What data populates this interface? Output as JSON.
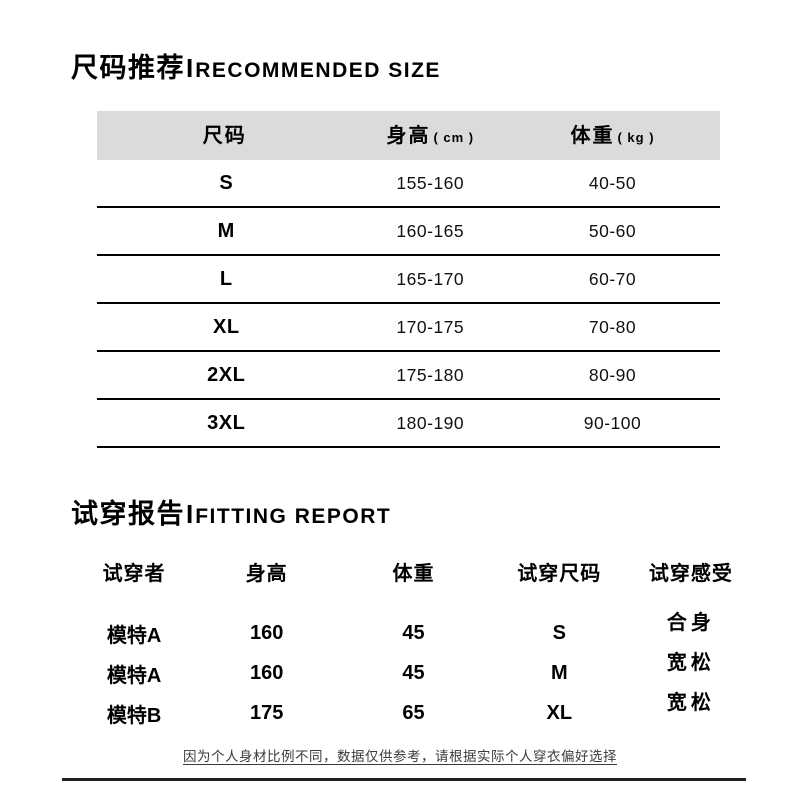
{
  "page": {
    "background": "#ffffff"
  },
  "section_size": {
    "title_zh": "尺码推荐",
    "title_sep": "I",
    "title_en": "RECOMMENDED SIZE",
    "table": {
      "header_bg": "#dbdbdb",
      "columns": [
        {
          "label": "尺码",
          "unit": ""
        },
        {
          "label": "身高",
          "unit": "( cm )"
        },
        {
          "label": "体重",
          "unit": "( kg )"
        }
      ],
      "rows": [
        {
          "size": "S",
          "height": "155-160",
          "weight": "40-50"
        },
        {
          "size": "M",
          "height": "160-165",
          "weight": "50-60"
        },
        {
          "size": "L",
          "height": "165-170",
          "weight": "60-70"
        },
        {
          "size": "XL",
          "height": "170-175",
          "weight": "70-80"
        },
        {
          "size": "2XL",
          "height": "175-180",
          "weight": "80-90"
        },
        {
          "size": "3XL",
          "height": "180-190",
          "weight": "90-100"
        }
      ]
    }
  },
  "section_fitting": {
    "title_zh": "试穿报告",
    "title_sep": "I",
    "title_en": "FITTING REPORT",
    "table": {
      "columns": [
        "试穿者",
        "身高",
        "体重",
        "试穿尺码",
        "试穿感受"
      ],
      "rows": [
        {
          "model": "模特A",
          "height": "160",
          "weight": "45",
          "size": "S",
          "feel": "合身"
        },
        {
          "model": "模特A",
          "height": "160",
          "weight": "45",
          "size": "M",
          "feel": "宽松"
        },
        {
          "model": "模特B",
          "height": "175",
          "weight": "65",
          "size": "XL",
          "feel": "宽松"
        }
      ]
    }
  },
  "footer": {
    "note": "因为个人身材比例不同，数据仅供参考，请根据实际个人穿衣偏好选择",
    "rule_color": "#231f20"
  }
}
